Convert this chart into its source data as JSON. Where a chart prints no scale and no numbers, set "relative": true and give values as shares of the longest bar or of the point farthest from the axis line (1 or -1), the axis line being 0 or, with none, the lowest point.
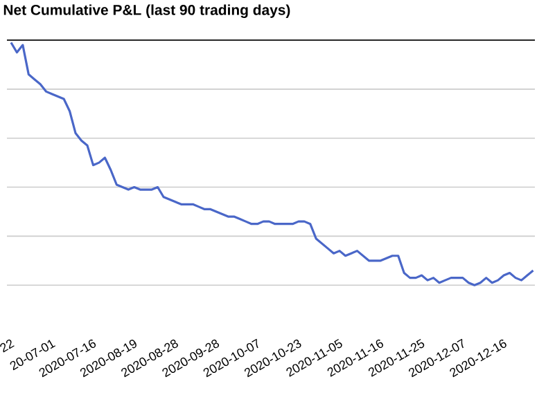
{
  "chart_data": {
    "type": "line",
    "title": "Net Cumulative P&L (last 90 trading days)",
    "relative": true,
    "grid": "y",
    "categories": [
      "22",
      null,
      null,
      null,
      null,
      null,
      null,
      "20-07-01",
      null,
      null,
      null,
      null,
      null,
      null,
      "2020-07-16",
      null,
      null,
      null,
      null,
      null,
      null,
      "2020-08-19",
      null,
      null,
      null,
      null,
      null,
      null,
      "2020-08-28",
      null,
      null,
      null,
      null,
      null,
      null,
      "2020-09-28",
      null,
      null,
      null,
      null,
      null,
      null,
      "2020-10-07",
      null,
      null,
      null,
      null,
      null,
      null,
      "2020-10-23",
      null,
      null,
      null,
      null,
      null,
      null,
      "2020-11-05",
      null,
      null,
      null,
      null,
      null,
      null,
      "2020-11-16",
      null,
      null,
      null,
      null,
      null,
      null,
      "2020-11-25",
      null,
      null,
      null,
      null,
      null,
      null,
      "2020-12-07",
      null,
      null,
      null,
      null,
      null,
      null,
      "2020-12-16",
      null,
      null,
      null,
      null,
      null
    ],
    "series": [
      {
        "color": "#4a67c8",
        "values": [
          -0.01,
          -0.05,
          -0.02,
          -0.14,
          -0.16,
          -0.18,
          -0.21,
          -0.22,
          -0.23,
          -0.24,
          -0.29,
          -0.38,
          -0.41,
          -0.43,
          -0.51,
          -0.5,
          -0.48,
          -0.53,
          -0.59,
          -0.6,
          -0.61,
          -0.6,
          -0.61,
          -0.61,
          -0.61,
          -0.6,
          -0.64,
          -0.65,
          -0.66,
          -0.67,
          -0.67,
          -0.67,
          -0.68,
          -0.69,
          -0.69,
          -0.7,
          -0.71,
          -0.72,
          -0.72,
          -0.73,
          -0.74,
          -0.75,
          -0.75,
          -0.74,
          -0.74,
          -0.75,
          -0.75,
          -0.75,
          -0.75,
          -0.74,
          -0.74,
          -0.75,
          -0.81,
          -0.83,
          -0.85,
          -0.87,
          -0.86,
          -0.88,
          -0.87,
          -0.86,
          -0.88,
          -0.9,
          -0.9,
          -0.9,
          -0.89,
          -0.88,
          -0.88,
          -0.95,
          -0.97,
          -0.97,
          -0.96,
          -0.98,
          -0.97,
          -0.99,
          -0.98,
          -0.97,
          -0.97,
          -0.97,
          -0.99,
          -1,
          -0.99,
          -0.97,
          -0.99,
          -0.98,
          -0.96,
          -0.95,
          -0.97,
          -0.98,
          -0.96,
          -0.94
        ]
      }
    ]
  }
}
